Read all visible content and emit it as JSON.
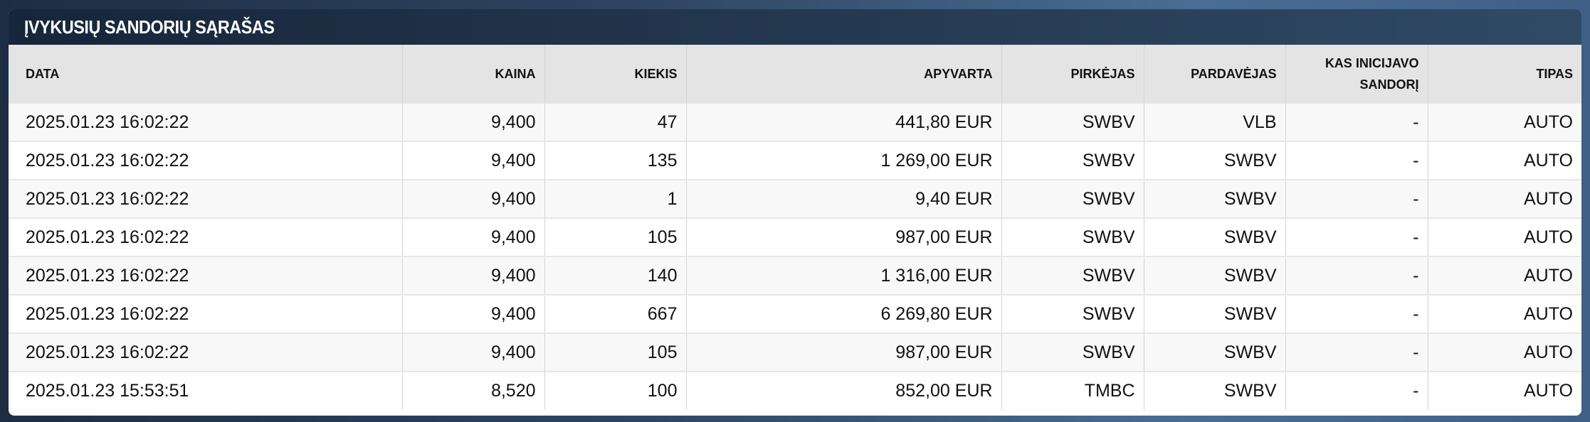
{
  "title": "ĮVYKUSIŲ SANDORIŲ SĄRAŠAS",
  "columns": [
    "DATA",
    "KAINA",
    "KIEKIS",
    "APYVARTA",
    "PIRKĖJAS",
    "PARDAVĖJAS",
    "KAS INICIJAVO SANDORĮ",
    "TIPAS"
  ],
  "rows": [
    [
      "2025.01.23 16:02:22",
      "9,400",
      "47",
      "441,80 EUR",
      "SWBV",
      "VLB",
      "-",
      "AUTO"
    ],
    [
      "2025.01.23 16:02:22",
      "9,400",
      "135",
      "1 269,00 EUR",
      "SWBV",
      "SWBV",
      "-",
      "AUTO"
    ],
    [
      "2025.01.23 16:02:22",
      "9,400",
      "1",
      "9,40 EUR",
      "SWBV",
      "SWBV",
      "-",
      "AUTO"
    ],
    [
      "2025.01.23 16:02:22",
      "9,400",
      "105",
      "987,00 EUR",
      "SWBV",
      "SWBV",
      "-",
      "AUTO"
    ],
    [
      "2025.01.23 16:02:22",
      "9,400",
      "140",
      "1 316,00 EUR",
      "SWBV",
      "SWBV",
      "-",
      "AUTO"
    ],
    [
      "2025.01.23 16:02:22",
      "9,400",
      "667",
      "6 269,80 EUR",
      "SWBV",
      "SWBV",
      "-",
      "AUTO"
    ],
    [
      "2025.01.23 16:02:22",
      "9,400",
      "105",
      "987,00 EUR",
      "SWBV",
      "SWBV",
      "-",
      "AUTO"
    ],
    [
      "2025.01.23 15:53:51",
      "8,520",
      "100",
      "852,00 EUR",
      "TMBC",
      "SWBV",
      "-",
      "AUTO"
    ]
  ]
}
